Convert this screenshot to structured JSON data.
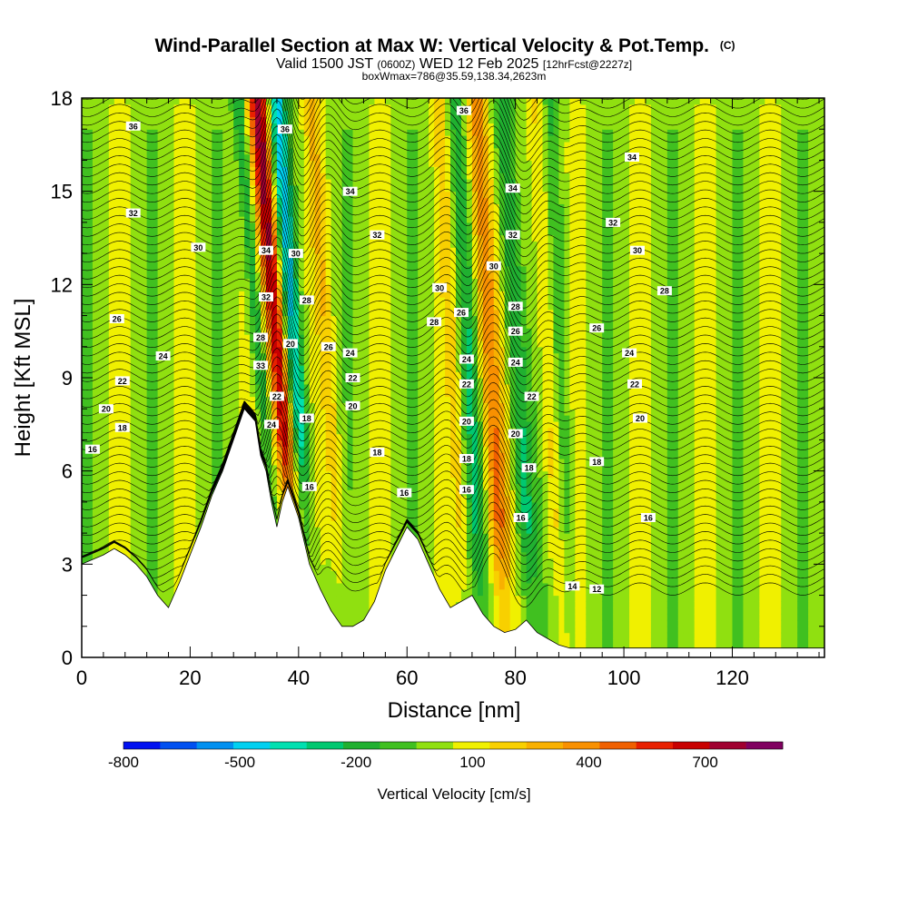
{
  "chart_data": {
    "type": "heatmap",
    "title": "Wind-Parallel Section at Max W: Vertical Velocity & Pot.Temp.",
    "title_mark": "(C)",
    "subtitle_prefix": "Valid 1500 JST",
    "subtitle_utc": "(0600Z)",
    "subtitle_date": "WED 12 Feb 2025",
    "subtitle_fcst": "[12hrFcst@2227z]",
    "subtitle2": "boxWmax=786@35.59,138.34,2623m",
    "xlabel": "Distance [nm]",
    "ylabel": "Height [Kft MSL]",
    "xlim": [
      0,
      137
    ],
    "ylim": [
      0,
      18
    ],
    "x_ticks": [
      0,
      20,
      40,
      60,
      80,
      100,
      120
    ],
    "y_ticks": [
      0,
      3,
      6,
      9,
      12,
      15,
      18
    ],
    "colorbar": {
      "title": "Vertical Velocity [cm/s]",
      "labels": [
        "-800",
        "-500",
        "-200",
        "100",
        "400",
        "700"
      ],
      "label_values": [
        -800,
        -500,
        -200,
        100,
        400,
        700
      ],
      "range": [
        -800,
        900
      ],
      "step": 100,
      "colors": [
        "#0010f0",
        "#0050f0",
        "#0090f0",
        "#00d0f0",
        "#00e0b0",
        "#00c870",
        "#20b030",
        "#40c020",
        "#90e010",
        "#f0f000",
        "#f8d000",
        "#f8b000",
        "#f89000",
        "#f06000",
        "#e82000",
        "#c80000",
        "#a00030",
        "#800060"
      ]
    },
    "terrain": {
      "x": [
        0,
        4,
        6,
        8,
        10,
        12,
        14,
        16,
        18,
        20,
        22,
        24,
        26,
        28,
        30,
        32,
        33,
        34,
        35,
        36,
        37,
        38,
        40,
        42,
        44,
        46,
        48,
        50,
        52,
        54,
        56,
        58,
        60,
        62,
        64,
        66,
        68,
        70,
        72,
        74,
        76,
        78,
        80,
        82,
        84,
        86,
        88,
        90,
        95,
        100,
        110,
        120,
        130,
        137
      ],
      "height": [
        3.0,
        3.3,
        3.5,
        3.3,
        3.0,
        2.6,
        2.0,
        1.6,
        2.4,
        3.3,
        4.2,
        5.2,
        6.0,
        7.0,
        8.0,
        7.6,
        6.5,
        6.0,
        5.0,
        4.2,
        5.0,
        5.5,
        4.5,
        3.0,
        2.2,
        1.5,
        1.0,
        1.0,
        1.2,
        1.8,
        2.8,
        3.5,
        4.2,
        3.8,
        3.0,
        2.2,
        1.6,
        1.8,
        2.0,
        1.4,
        1.0,
        0.8,
        0.9,
        1.2,
        0.8,
        0.6,
        0.4,
        0.3,
        0.3,
        0.3,
        0.3,
        0.3,
        0.3,
        0.3
      ]
    },
    "updrafts": [
      {
        "x": 36.5,
        "width": 1.8,
        "w": 786,
        "lean": -0.45
      },
      {
        "x": 45.5,
        "width": 1.5,
        "w": 200,
        "lean": -0.35
      },
      {
        "x": 75.5,
        "width": 2.0,
        "w": 450,
        "lean": -0.3
      },
      {
        "x": 68.5,
        "width": 1.4,
        "w": 150,
        "lean": -0.3
      },
      {
        "x": 86.0,
        "width": 1.6,
        "w": 200,
        "lean": -0.25
      }
    ],
    "downdrafts": [
      {
        "x": 39.5,
        "width": 1.6,
        "w": -480,
        "lean": -0.4
      },
      {
        "x": 33.0,
        "width": 1.2,
        "w": -300,
        "lean": -0.45
      },
      {
        "x": 71.5,
        "width": 1.6,
        "w": -250,
        "lean": -0.3
      },
      {
        "x": 80.5,
        "width": 1.8,
        "w": -300,
        "lean": -0.3
      },
      {
        "x": 88.5,
        "width": 1.4,
        "w": -150,
        "lean": -0.2
      }
    ],
    "theta_levels": [
      12,
      14,
      16,
      18,
      20,
      22,
      24,
      26,
      28,
      30,
      32,
      34,
      36
    ],
    "theta_labels": [
      {
        "x": 2,
        "y": 6.7,
        "t": "16"
      },
      {
        "x": 7.5,
        "y": 7.4,
        "t": "18"
      },
      {
        "x": 4.5,
        "y": 8.0,
        "t": "20"
      },
      {
        "x": 7.5,
        "y": 8.9,
        "t": "22"
      },
      {
        "x": 15,
        "y": 9.7,
        "t": "24"
      },
      {
        "x": 6.5,
        "y": 10.9,
        "t": "26"
      },
      {
        "x": 9.5,
        "y": 14.3,
        "t": "32"
      },
      {
        "x": 21.5,
        "y": 13.2,
        "t": "30"
      },
      {
        "x": 9.5,
        "y": 17.1,
        "t": "36"
      },
      {
        "x": 37.5,
        "y": 17.0,
        "t": "36"
      },
      {
        "x": 34,
        "y": 13.1,
        "t": "34"
      },
      {
        "x": 34,
        "y": 11.6,
        "t": "32"
      },
      {
        "x": 33,
        "y": 10.3,
        "t": "28"
      },
      {
        "x": 33,
        "y": 9.4,
        "t": "33"
      },
      {
        "x": 36,
        "y": 8.4,
        "t": "22"
      },
      {
        "x": 35,
        "y": 7.5,
        "t": "24"
      },
      {
        "x": 39.5,
        "y": 13.0,
        "t": "30"
      },
      {
        "x": 41.5,
        "y": 11.5,
        "t": "28"
      },
      {
        "x": 38.5,
        "y": 10.1,
        "t": "20"
      },
      {
        "x": 45.5,
        "y": 10.0,
        "t": "26"
      },
      {
        "x": 41.5,
        "y": 7.7,
        "t": "18"
      },
      {
        "x": 42,
        "y": 5.5,
        "t": "16"
      },
      {
        "x": 49.5,
        "y": 15.0,
        "t": "34"
      },
      {
        "x": 54.5,
        "y": 13.6,
        "t": "32"
      },
      {
        "x": 49.5,
        "y": 9.8,
        "t": "24"
      },
      {
        "x": 50,
        "y": 9.0,
        "t": "22"
      },
      {
        "x": 50,
        "y": 8.1,
        "t": "20"
      },
      {
        "x": 54.5,
        "y": 6.6,
        "t": "18"
      },
      {
        "x": 59.5,
        "y": 5.3,
        "t": "16"
      },
      {
        "x": 70.5,
        "y": 17.6,
        "t": "36"
      },
      {
        "x": 66,
        "y": 11.9,
        "t": "30"
      },
      {
        "x": 65,
        "y": 10.8,
        "t": "28"
      },
      {
        "x": 70,
        "y": 11.1,
        "t": "26"
      },
      {
        "x": 71,
        "y": 9.6,
        "t": "24"
      },
      {
        "x": 71,
        "y": 8.8,
        "t": "22"
      },
      {
        "x": 71,
        "y": 7.6,
        "t": "20"
      },
      {
        "x": 71,
        "y": 6.4,
        "t": "18"
      },
      {
        "x": 71,
        "y": 5.4,
        "t": "16"
      },
      {
        "x": 79.5,
        "y": 15.1,
        "t": "34"
      },
      {
        "x": 79.5,
        "y": 13.6,
        "t": "32"
      },
      {
        "x": 76,
        "y": 12.6,
        "t": "30"
      },
      {
        "x": 80,
        "y": 11.3,
        "t": "28"
      },
      {
        "x": 80,
        "y": 10.5,
        "t": "26"
      },
      {
        "x": 80,
        "y": 9.5,
        "t": "24"
      },
      {
        "x": 83,
        "y": 8.4,
        "t": "22"
      },
      {
        "x": 80,
        "y": 7.2,
        "t": "20"
      },
      {
        "x": 82.5,
        "y": 6.1,
        "t": "18"
      },
      {
        "x": 81,
        "y": 4.5,
        "t": "16"
      },
      {
        "x": 101.5,
        "y": 16.1,
        "t": "34"
      },
      {
        "x": 98,
        "y": 14.0,
        "t": "32"
      },
      {
        "x": 102.5,
        "y": 13.1,
        "t": "30"
      },
      {
        "x": 107.5,
        "y": 11.8,
        "t": "28"
      },
      {
        "x": 95,
        "y": 10.6,
        "t": "26"
      },
      {
        "x": 101,
        "y": 9.8,
        "t": "24"
      },
      {
        "x": 102,
        "y": 8.8,
        "t": "22"
      },
      {
        "x": 103,
        "y": 7.7,
        "t": "20"
      },
      {
        "x": 95,
        "y": 6.3,
        "t": "18"
      },
      {
        "x": 104.5,
        "y": 4.5,
        "t": "16"
      },
      {
        "x": 90.5,
        "y": 2.3,
        "t": "14"
      },
      {
        "x": 95,
        "y": 2.2,
        "t": "12"
      }
    ]
  }
}
